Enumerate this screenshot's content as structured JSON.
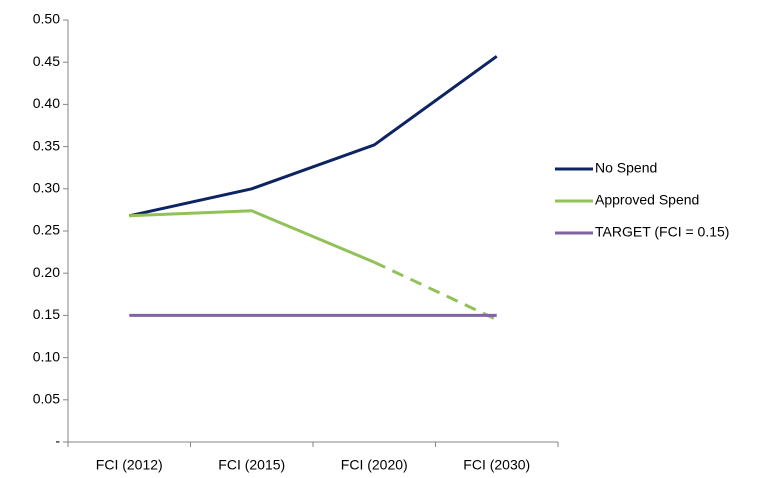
{
  "chart_data": {
    "type": "line",
    "categories": [
      "FCI (2012)",
      "FCI (2015)",
      "FCI (2020)",
      "FCI (2030)"
    ],
    "series": [
      {
        "name": "No Spend",
        "color": "#0c2461",
        "values": [
          0.268,
          0.3,
          0.352,
          0.457
        ]
      },
      {
        "name": "Approved Spend",
        "color": "#92c15a",
        "values": [
          0.268,
          0.274,
          0.213,
          0.145
        ],
        "segment_styles": [
          "solid",
          "solid",
          "dashed"
        ]
      },
      {
        "name": "TARGET (FCI = 0.15)",
        "color": "#8064a2",
        "values": [
          0.15,
          0.15,
          0.15,
          0.15
        ]
      }
    ],
    "ylim": [
      0,
      0.5
    ],
    "yticks": [
      {
        "value": 0,
        "label": "-"
      },
      0.05,
      {
        "value": 0.1,
        "label": "0.10"
      },
      0.15,
      {
        "value": 0.2,
        "label": "0.20"
      },
      0.25,
      {
        "value": 0.3,
        "label": "0.30"
      },
      0.35,
      {
        "value": 0.4,
        "label": "0.40"
      },
      0.45,
      {
        "value": 0.5,
        "label": "0.50"
      }
    ],
    "legend": "right"
  }
}
